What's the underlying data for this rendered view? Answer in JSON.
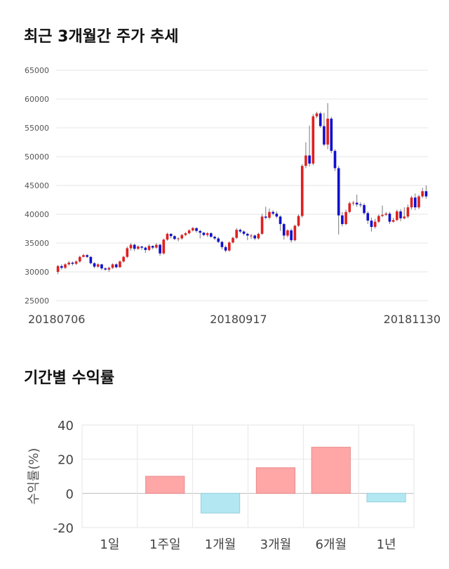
{
  "sections": {
    "price_title": "최근 3개월간 주가 추세",
    "returns_title": "기간별 수익률"
  },
  "chart_data": [
    {
      "type": "candlestick",
      "title": "최근 3개월간 주가 추세",
      "ylim": [
        25000,
        65000
      ],
      "y_ticks": [
        25000,
        30000,
        35000,
        40000,
        45000,
        50000,
        55000,
        60000,
        65000
      ],
      "x_tick_labels": [
        "20180706",
        "20180917",
        "20181130"
      ],
      "grid": true,
      "colors": {
        "up": "#e02020",
        "down": "#1010d0",
        "wick": "#777777"
      },
      "candles": [
        [
          30000,
          31000,
          29600,
          31200
        ],
        [
          31000,
          30700,
          30400,
          31300
        ],
        [
          30700,
          31300,
          30500,
          31500
        ],
        [
          31300,
          31600,
          31100,
          31900
        ],
        [
          31600,
          31400,
          31100,
          31800
        ],
        [
          31400,
          31800,
          31200,
          32000
        ],
        [
          31800,
          32600,
          31600,
          32800
        ],
        [
          32600,
          32900,
          32500,
          33100
        ],
        [
          32900,
          32600,
          32400,
          33100
        ],
        [
          32600,
          31500,
          31300,
          32700
        ],
        [
          31500,
          30900,
          30600,
          31700
        ],
        [
          30900,
          31300,
          30700,
          31500
        ],
        [
          31300,
          30600,
          30300,
          31400
        ],
        [
          30600,
          30400,
          30200,
          30800
        ],
        [
          30400,
          30700,
          30000,
          30900
        ],
        [
          30700,
          31300,
          30500,
          31500
        ],
        [
          31300,
          30800,
          30600,
          31500
        ],
        [
          30800,
          31800,
          30700,
          32000
        ],
        [
          31800,
          32600,
          31600,
          32800
        ],
        [
          32600,
          34100,
          32400,
          34400
        ],
        [
          34100,
          34700,
          33700,
          35000
        ],
        [
          34700,
          34000,
          33600,
          34900
        ],
        [
          34000,
          34400,
          33800,
          34600
        ],
        [
          34400,
          34200,
          33800,
          34500
        ],
        [
          34200,
          33800,
          33300,
          34400
        ],
        [
          33800,
          34500,
          33600,
          34800
        ],
        [
          34500,
          34200,
          33900,
          34600
        ],
        [
          34200,
          34700,
          34000,
          35000
        ],
        [
          34700,
          33200,
          32800,
          34900
        ],
        [
          33200,
          35600,
          33000,
          35800
        ],
        [
          35600,
          36600,
          35400,
          36800
        ],
        [
          36600,
          36200,
          35800,
          36700
        ],
        [
          36200,
          35700,
          35500,
          36400
        ],
        [
          35700,
          35800,
          35300,
          36000
        ],
        [
          35800,
          36400,
          35600,
          36600
        ],
        [
          36400,
          36700,
          36200,
          36900
        ],
        [
          36700,
          37200,
          36500,
          37400
        ],
        [
          37200,
          37600,
          37000,
          37800
        ],
        [
          37600,
          37100,
          36800,
          37700
        ],
        [
          37100,
          36800,
          35800,
          37300
        ],
        [
          36800,
          36400,
          36200,
          36900
        ],
        [
          36400,
          36700,
          36100,
          36900
        ],
        [
          36700,
          36100,
          35900,
          36900
        ],
        [
          36100,
          35800,
          35500,
          36300
        ],
        [
          35800,
          35200,
          35000,
          36100
        ],
        [
          35200,
          34300,
          33900,
          35400
        ],
        [
          34300,
          33700,
          33400,
          34600
        ],
        [
          33700,
          35100,
          33500,
          35300
        ],
        [
          35100,
          35900,
          34900,
          36100
        ],
        [
          35900,
          37300,
          35700,
          37600
        ],
        [
          37300,
          37000,
          36700,
          37500
        ],
        [
          37000,
          36600,
          36300,
          37200
        ],
        [
          36600,
          36300,
          35500,
          36800
        ],
        [
          36300,
          36300,
          35700,
          36600
        ],
        [
          36300,
          35800,
          35500,
          36500
        ],
        [
          35800,
          36600,
          35600,
          36800
        ],
        [
          36600,
          39600,
          36400,
          40100
        ],
        [
          39600,
          39400,
          39100,
          41300
        ],
        [
          39400,
          40400,
          39100,
          41000
        ],
        [
          40400,
          40100,
          39800,
          40700
        ],
        [
          40100,
          39600,
          39300,
          40500
        ],
        [
          39600,
          38300,
          37100,
          39800
        ],
        [
          38300,
          36300,
          35600,
          38500
        ],
        [
          36300,
          37200,
          36000,
          37400
        ],
        [
          37200,
          35500,
          35100,
          37500
        ],
        [
          35500,
          38000,
          35300,
          38200
        ],
        [
          38000,
          39700,
          37800,
          40000
        ],
        [
          39700,
          48400,
          39400,
          48700
        ],
        [
          48400,
          50200,
          48000,
          52500
        ],
        [
          50200,
          48800,
          48300,
          55400
        ],
        [
          48800,
          57000,
          48500,
          57400
        ],
        [
          57000,
          57500,
          56700,
          57800
        ],
        [
          57500,
          55300,
          55000,
          57800
        ],
        [
          55300,
          52100,
          51800,
          57600
        ],
        [
          52100,
          56600,
          51300,
          59300
        ],
        [
          56600,
          51000,
          50600,
          56900
        ],
        [
          51000,
          48000,
          47500,
          51300
        ],
        [
          48000,
          39800,
          36500,
          48400
        ],
        [
          39800,
          38300,
          37900,
          40400
        ],
        [
          38300,
          40400,
          38100,
          40800
        ],
        [
          40400,
          41900,
          40200,
          42200
        ],
        [
          41900,
          42000,
          41500,
          42300
        ],
        [
          42000,
          41700,
          41300,
          43400
        ],
        [
          41700,
          41600,
          41200,
          42100
        ],
        [
          41600,
          40200,
          39900,
          41900
        ],
        [
          40200,
          38900,
          38300,
          40500
        ],
        [
          38900,
          37800,
          37000,
          39400
        ],
        [
          37800,
          38700,
          37500,
          39200
        ],
        [
          38700,
          39700,
          38500,
          40000
        ],
        [
          39700,
          39900,
          39500,
          41500
        ],
        [
          39900,
          40100,
          39700,
          40400
        ],
        [
          40100,
          38700,
          38300,
          40400
        ],
        [
          38700,
          39000,
          38500,
          39400
        ],
        [
          39000,
          40500,
          38800,
          40800
        ],
        [
          40500,
          39300,
          38800,
          40900
        ],
        [
          39300,
          39600,
          39100,
          41200
        ],
        [
          39600,
          41200,
          39300,
          41700
        ],
        [
          41200,
          42900,
          40800,
          43200
        ],
        [
          42900,
          41200,
          40700,
          43600
        ],
        [
          41200,
          43100,
          40900,
          43400
        ],
        [
          43100,
          44000,
          42800,
          44600
        ],
        [
          44000,
          43100,
          42700,
          45000
        ]
      ]
    },
    {
      "type": "bar",
      "ylabel": "수익률(%)",
      "categories": [
        "1일",
        "1주일",
        "1개월",
        "3개월",
        "6개월",
        "1년"
      ],
      "values": [
        0,
        10,
        -11.5,
        15,
        27,
        -5
      ],
      "ylim": [
        -20,
        40
      ],
      "y_ticks": [
        -20,
        0,
        20,
        40
      ],
      "grid": true,
      "colors": {
        "positive": "#ffa6a6",
        "negative": "#b3e8f2",
        "positive_edge": "#e88a8a",
        "negative_edge": "#90d0de"
      }
    }
  ]
}
